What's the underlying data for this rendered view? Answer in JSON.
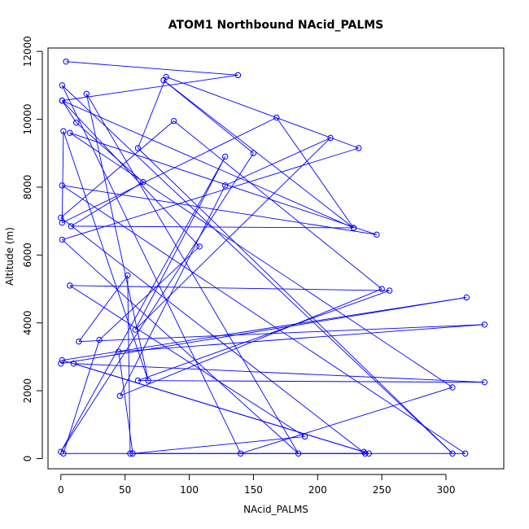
{
  "chart_data": {
    "type": "line",
    "title": "ATOM1 Northbound NAcid_PALMS",
    "xlabel": "NAcid_PALMS",
    "ylabel": "Altitude (m)",
    "xlim": [
      -10,
      345
    ],
    "ylim": [
      -300,
      12100
    ],
    "x_ticks": [
      0,
      50,
      100,
      150,
      200,
      250,
      300
    ],
    "y_ticks": [
      0,
      2000,
      4000,
      6000,
      8000,
      10000,
      12000
    ],
    "grid": false,
    "legend": "none",
    "marker": "open-circle",
    "series_color": "#0000ff",
    "series": [
      {
        "x": [
          4,
          138,
          1,
          12,
          64,
          8,
          228,
          168,
          1,
          2,
          68,
          20,
          185,
          1,
          232,
          82,
          60,
          305,
          1,
          140,
          305,
          7,
          246,
          1,
          315,
          2,
          30,
          108,
          1,
          228,
          80,
          150,
          0,
          128,
          58,
          210,
          128,
          46,
          250,
          88,
          0,
          237,
          54,
          52,
          14,
          330,
          45,
          56,
          190,
          7,
          256,
          60,
          330,
          10,
          236,
          240,
          1,
          316,
          0
        ],
        "y": [
          11700,
          11300,
          10550,
          9900,
          8150,
          6850,
          6800,
          10050,
          6950,
          9650,
          2300,
          10750,
          150,
          6450,
          9150,
          11250,
          9150,
          150,
          11000,
          150,
          2100,
          9600,
          6600,
          8050,
          150,
          150,
          3500,
          6250,
          10550,
          6800,
          11150,
          9000,
          200,
          8900,
          3800,
          9450,
          8050,
          1850,
          5000,
          9950,
          7100,
          150,
          150,
          5400,
          3450,
          3950,
          3150,
          150,
          650,
          5100,
          4950,
          2300,
          2250,
          2800,
          200,
          150,
          2900,
          4750,
          2800
        ]
      }
    ]
  }
}
